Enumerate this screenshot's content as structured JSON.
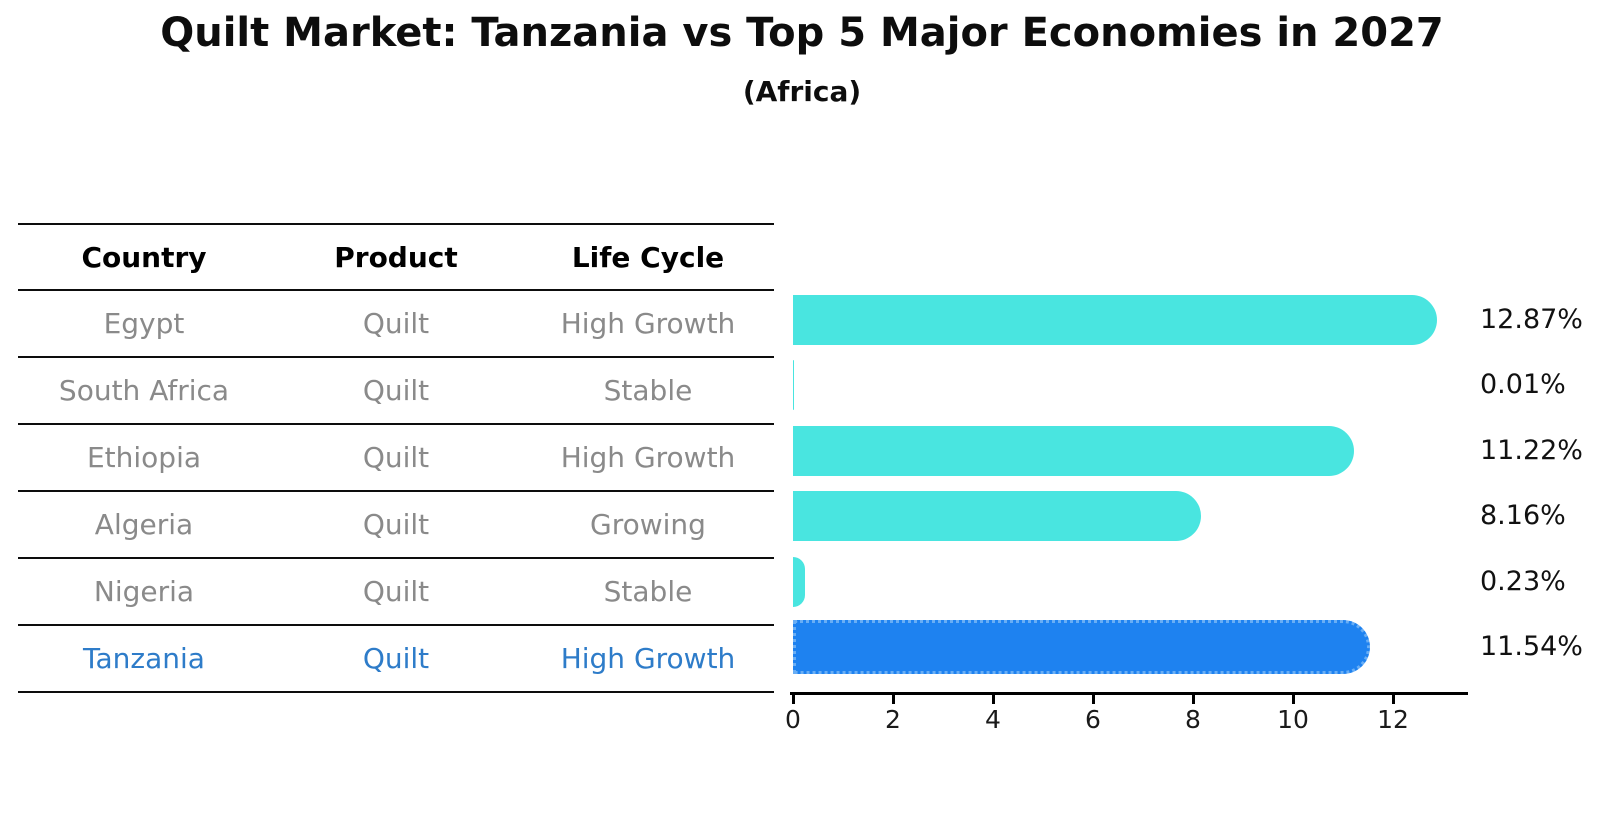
{
  "title": "Quilt Market: Tanzania vs Top 5 Major Economies in 2027",
  "subtitle": "(Africa)",
  "table": {
    "headers": [
      "Country",
      "Product",
      "Life Cycle"
    ],
    "rows": [
      {
        "country": "Egypt",
        "product": "Quilt",
        "life_cycle": "High Growth",
        "highlight": false
      },
      {
        "country": "South Africa",
        "product": "Quilt",
        "life_cycle": "Stable",
        "highlight": false
      },
      {
        "country": "Ethiopia",
        "product": "Quilt",
        "life_cycle": "High Growth",
        "highlight": false
      },
      {
        "country": "Algeria",
        "product": "Quilt",
        "life_cycle": "Growing",
        "highlight": false
      },
      {
        "country": "Nigeria",
        "product": "Quilt",
        "life_cycle": "Stable",
        "highlight": false
      },
      {
        "country": "Tanzania",
        "product": "Quilt",
        "life_cycle": "High Growth",
        "highlight": true
      }
    ]
  },
  "chart_data": {
    "type": "bar",
    "orientation": "horizontal",
    "title": "Quilt Market: Tanzania vs Top 5 Major Economies in 2027",
    "subtitle": "(Africa)",
    "categories": [
      "Egypt",
      "South Africa",
      "Ethiopia",
      "Algeria",
      "Nigeria",
      "Tanzania"
    ],
    "values": [
      12.87,
      0.01,
      11.22,
      8.16,
      0.23,
      11.54
    ],
    "value_labels": [
      "12.87%",
      "0.01%",
      "11.22%",
      "8.16%",
      "0.23%",
      "11.54%"
    ],
    "highlight_index": 5,
    "xtick_labels": [
      "0",
      "2",
      "4",
      "6",
      "8",
      "10",
      "12"
    ],
    "xtick_values": [
      0,
      2,
      4,
      6,
      8,
      10,
      12
    ],
    "xlim": [
      0,
      13.5
    ],
    "grid": false,
    "legend": null
  },
  "colors": {
    "bar": "#49E5E0",
    "highlight_bar": "#1E82F0",
    "highlight_border": "#69AEF5",
    "table_text": "#8a8a8a",
    "highlight_text": "#2E7CC9",
    "axis": "#000000"
  }
}
